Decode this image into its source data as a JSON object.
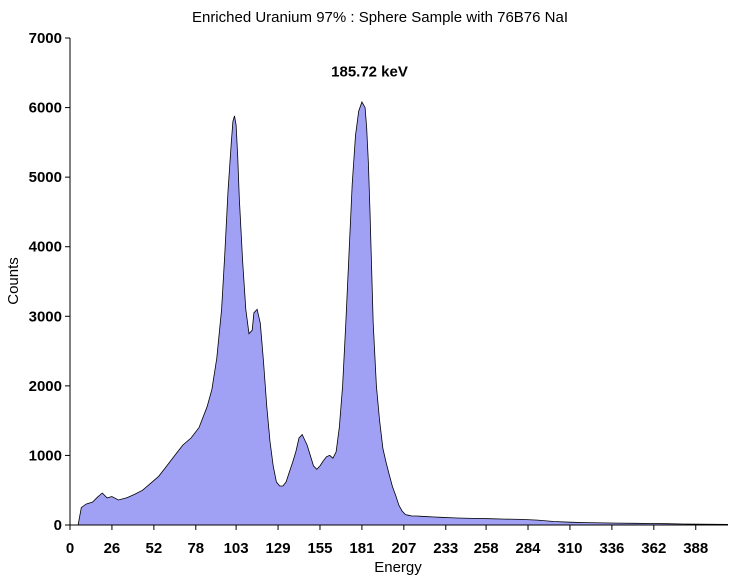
{
  "chart_data": {
    "type": "area",
    "title": "Enriched Uranium 97% : Sphere Sample with 76B76 NaI",
    "xlabel": "Energy",
    "ylabel": "Counts",
    "xlim": [
      0,
      408
    ],
    "ylim": [
      0,
      7000
    ],
    "x_ticks": [
      "0",
      "26",
      "52",
      "78",
      "103",
      "129",
      "155",
      "181",
      "207",
      "233",
      "258",
      "284",
      "310",
      "336",
      "362",
      "388"
    ],
    "y_ticks": [
      "0",
      "1000",
      "2000",
      "3000",
      "4000",
      "5000",
      "6000",
      "7000"
    ],
    "grid": false,
    "legend": "none",
    "fill_color": "#a0a0f5",
    "line_color": "#000000",
    "annotations": [
      {
        "text": "185.72 keV",
        "x": 185.72,
        "y": 6300
      }
    ],
    "series": [
      {
        "x": [
          5,
          7,
          10,
          14,
          17,
          20,
          23,
          26,
          30,
          35,
          40,
          45,
          50,
          55,
          60,
          65,
          70,
          75,
          80,
          85,
          88,
          91,
          94,
          96,
          98,
          100,
          101,
          102,
          103,
          104,
          105,
          107,
          109,
          111,
          113,
          114,
          116,
          118,
          120,
          122,
          124,
          126,
          128,
          130,
          132,
          134,
          136,
          138,
          140,
          142,
          144,
          145,
          147,
          149,
          151,
          153,
          155,
          157,
          159,
          161,
          163,
          165,
          167,
          169,
          171,
          173,
          175,
          177,
          179,
          181,
          183,
          184,
          185,
          186,
          187,
          188,
          190,
          192,
          194,
          196,
          198,
          200,
          202,
          204,
          206,
          208,
          210,
          212,
          215,
          218,
          222,
          226,
          230,
          240,
          250,
          260,
          270,
          280,
          290,
          300,
          310,
          320,
          330,
          340,
          350,
          360,
          370,
          380,
          390,
          400,
          408
        ],
        "y": [
          0,
          250,
          300,
          330,
          400,
          460,
          390,
          410,
          360,
          390,
          440,
          500,
          600,
          700,
          850,
          1000,
          1150,
          1250,
          1400,
          1700,
          1950,
          2400,
          3100,
          3900,
          4800,
          5500,
          5800,
          5880,
          5750,
          5300,
          4700,
          3800,
          3100,
          2750,
          2800,
          3050,
          3100,
          2900,
          2350,
          1700,
          1200,
          850,
          620,
          560,
          560,
          620,
          760,
          900,
          1050,
          1250,
          1300,
          1250,
          1150,
          1000,
          850,
          800,
          850,
          920,
          980,
          1000,
          960,
          1050,
          1400,
          2000,
          2900,
          3900,
          4900,
          5600,
          5950,
          6080,
          6000,
          5700,
          5200,
          4500,
          3700,
          2900,
          2000,
          1500,
          1100,
          900,
          720,
          550,
          420,
          280,
          200,
          150,
          140,
          130,
          130,
          125,
          120,
          115,
          110,
          100,
          95,
          90,
          85,
          80,
          70,
          50,
          40,
          35,
          30,
          28,
          25,
          22,
          18,
          15,
          12,
          10,
          8
        ]
      }
    ]
  }
}
